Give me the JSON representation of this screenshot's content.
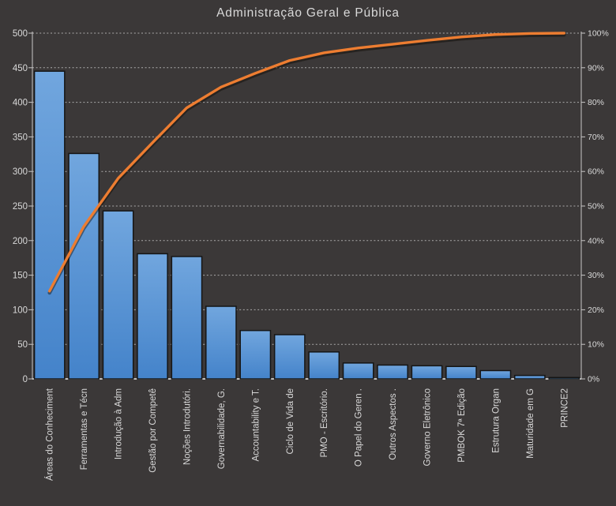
{
  "title": "Administração Geral e Pública",
  "chart_data": {
    "type": "bar",
    "subtype": "pareto (bars + cumulative percent line)",
    "title": "Administração Geral e Pública",
    "legend": "none",
    "grid": "dashed horizontal lines every 50 units / 10%",
    "categories": [
      "Áreas do Conheciment",
      "Ferramentas e Técn",
      "Introdução à Adm",
      "Gestão por Competê",
      "Noções Introdutóri.",
      "Governabilidade, G.",
      "Accountability e T.",
      "Ciclo de Vida de",
      "PMO - Escritório.",
      "O Papel do Geren .",
      "Outros Aspectos .",
      "Governo Eletrônico",
      "PMBOK 7ª Edição",
      "Estrutura Organ",
      "Maturidade em G",
      "PRINCE2"
    ],
    "series": [
      {
        "name": "count-bars",
        "type": "bar",
        "axis": "left",
        "values": [
          445,
          326,
          243,
          181,
          177,
          105,
          70,
          64,
          39,
          23,
          20,
          19,
          18,
          12,
          5,
          2
        ]
      },
      {
        "name": "cumulative-percent-line",
        "type": "line",
        "axis": "right",
        "values_pct": [
          25.4,
          44.1,
          58.0,
          68.3,
          78.4,
          84.4,
          88.4,
          92.1,
          94.3,
          95.7,
          96.8,
          97.9,
          98.9,
          99.6,
          99.9,
          100
        ]
      }
    ],
    "left_axis": {
      "min": 0,
      "max": 500,
      "step": 50,
      "tick_labels": [
        "0",
        "50",
        "100",
        "150",
        "200",
        "250",
        "300",
        "350",
        "400",
        "450",
        "500"
      ]
    },
    "right_axis": {
      "min": 0,
      "max": 100,
      "step": 10,
      "tick_labels": [
        "0%",
        "10%",
        "20%",
        "30%",
        "40%",
        "50%",
        "60%",
        "70%",
        "80%",
        "90%",
        "100%"
      ]
    },
    "colors": {
      "background": "#3B3838",
      "bar_fill_top": "#71A6DE",
      "bar_fill_bottom": "#4483CA",
      "bar_border": "#151515",
      "line": "#ED7D31",
      "line_shadow": "rgba(15,10,5,0.45)",
      "grid": "#BFBFBF",
      "axis_line": "#C9C7C7",
      "baseline": "#EDEDED",
      "text": "#D9D9D9"
    }
  }
}
